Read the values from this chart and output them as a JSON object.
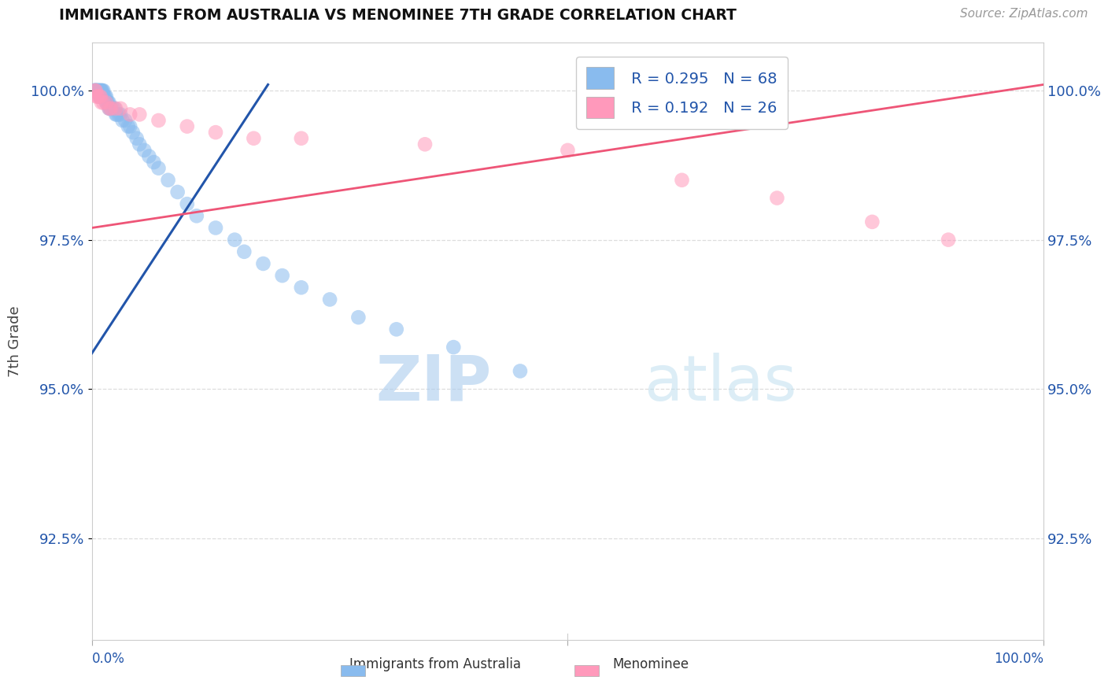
{
  "title": "IMMIGRANTS FROM AUSTRALIA VS MENOMINEE 7TH GRADE CORRELATION CHART",
  "source_text": "Source: ZipAtlas.com",
  "ylabel": "7th Grade",
  "xmin": 0.0,
  "xmax": 1.0,
  "ymin": 0.908,
  "ymax": 1.008,
  "yticks": [
    0.925,
    0.95,
    0.975,
    1.0
  ],
  "ytick_labels": [
    "92.5%",
    "95.0%",
    "97.5%",
    "100.0%"
  ],
  "legend_r_blue": "R = 0.295",
  "legend_n_blue": "N = 68",
  "legend_r_pink": "R = 0.192",
  "legend_n_pink": "N = 26",
  "legend_label_blue": "Immigrants from Australia",
  "legend_label_pink": "Menominee",
  "blue_color": "#89BBEE",
  "pink_color": "#FF99BB",
  "blue_line_color": "#2255AA",
  "pink_line_color": "#EE5577",
  "blue_line_x0": 0.0,
  "blue_line_y0": 0.956,
  "blue_line_x1": 0.185,
  "blue_line_y1": 1.001,
  "pink_line_x0": 0.0,
  "pink_line_y0": 0.977,
  "pink_line_x1": 1.0,
  "pink_line_y1": 1.001,
  "blue_scatter_x": [
    0.002,
    0.002,
    0.003,
    0.003,
    0.004,
    0.004,
    0.004,
    0.005,
    0.005,
    0.005,
    0.006,
    0.006,
    0.007,
    0.007,
    0.008,
    0.008,
    0.008,
    0.009,
    0.009,
    0.01,
    0.01,
    0.01,
    0.011,
    0.011,
    0.012,
    0.012,
    0.013,
    0.014,
    0.015,
    0.015,
    0.016,
    0.017,
    0.018,
    0.018,
    0.019,
    0.02,
    0.022,
    0.024,
    0.025,
    0.026,
    0.028,
    0.03,
    0.032,
    0.035,
    0.038,
    0.04,
    0.043,
    0.047,
    0.05,
    0.055,
    0.06,
    0.065,
    0.07,
    0.08,
    0.09,
    0.1,
    0.11,
    0.13,
    0.15,
    0.16,
    0.18,
    0.2,
    0.22,
    0.25,
    0.28,
    0.32,
    0.38,
    0.45
  ],
  "blue_scatter_y": [
    1.0,
    1.0,
    1.0,
    1.0,
    1.0,
    1.0,
    1.0,
    1.0,
    1.0,
    1.0,
    1.0,
    1.0,
    1.0,
    1.0,
    1.0,
    1.0,
    0.999,
    1.0,
    0.999,
    1.0,
    1.0,
    0.999,
    1.0,
    0.999,
    1.0,
    0.999,
    0.999,
    0.999,
    0.999,
    0.998,
    0.998,
    0.998,
    0.998,
    0.997,
    0.997,
    0.997,
    0.997,
    0.997,
    0.996,
    0.996,
    0.996,
    0.996,
    0.995,
    0.995,
    0.994,
    0.994,
    0.993,
    0.992,
    0.991,
    0.99,
    0.989,
    0.988,
    0.987,
    0.985,
    0.983,
    0.981,
    0.979,
    0.977,
    0.975,
    0.973,
    0.971,
    0.969,
    0.967,
    0.965,
    0.962,
    0.96,
    0.957,
    0.953
  ],
  "pink_scatter_x": [
    0.003,
    0.004,
    0.005,
    0.006,
    0.008,
    0.009,
    0.01,
    0.012,
    0.015,
    0.018,
    0.02,
    0.025,
    0.03,
    0.04,
    0.05,
    0.07,
    0.1,
    0.13,
    0.17,
    0.22,
    0.35,
    0.5,
    0.62,
    0.72,
    0.82,
    0.9
  ],
  "pink_scatter_y": [
    1.0,
    1.0,
    0.999,
    0.999,
    0.999,
    0.999,
    0.998,
    0.998,
    0.998,
    0.997,
    0.997,
    0.997,
    0.997,
    0.996,
    0.996,
    0.995,
    0.994,
    0.993,
    0.992,
    0.992,
    0.991,
    0.99,
    0.985,
    0.982,
    0.978,
    0.975
  ],
  "watermark_zip": "ZIP",
  "watermark_atlas": "atlas",
  "grid_color": "#DDDDDD",
  "background_color": "#FFFFFF",
  "marker_size": 180,
  "marker_alpha": 0.55
}
